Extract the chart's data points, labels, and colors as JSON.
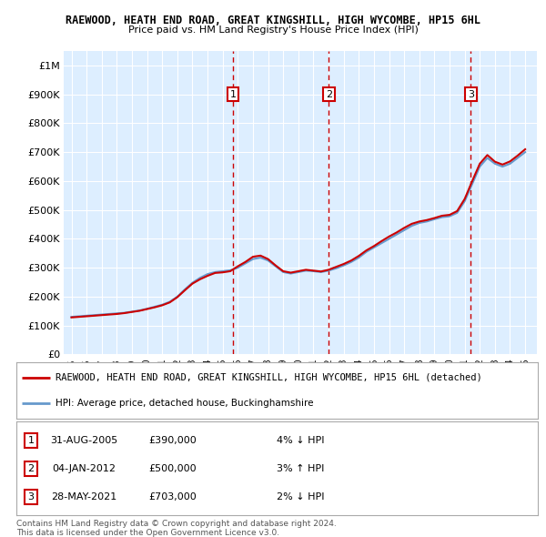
{
  "title1": "RAEWOOD, HEATH END ROAD, GREAT KINGSHILL, HIGH WYCOMBE, HP15 6HL",
  "title2": "Price paid vs. HM Land Registry's House Price Index (HPI)",
  "legend_label1": "RAEWOOD, HEATH END ROAD, GREAT KINGSHILL, HIGH WYCOMBE, HP15 6HL (detached)",
  "legend_label2": "HPI: Average price, detached house, Buckinghamshire",
  "footer1": "Contains HM Land Registry data © Crown copyright and database right 2024.",
  "footer2": "This data is licensed under the Open Government Licence v3.0.",
  "transactions": [
    {
      "num": 1,
      "date": "31-AUG-2005",
      "price": "£390,000",
      "hpi": "4% ↓ HPI",
      "year": 2005.67
    },
    {
      "num": 2,
      "date": "04-JAN-2012",
      "price": "£500,000",
      "hpi": "3% ↑ HPI",
      "year": 2012.01
    },
    {
      "num": 3,
      "date": "28-MAY-2021",
      "price": "£703,000",
      "hpi": "2% ↓ HPI",
      "year": 2021.41
    }
  ],
  "hpi_color": "#6699cc",
  "price_color": "#cc0000",
  "vline_color": "#cc0000",
  "bg_color": "#ddeeff",
  "ylim": [
    0,
    1050000
  ],
  "xlim_start": 1994.5,
  "xlim_end": 2025.8,
  "yticks": [
    0,
    100000,
    200000,
    300000,
    400000,
    500000,
    600000,
    700000,
    800000,
    900000,
    1000000
  ],
  "ytick_labels": [
    "£0",
    "£100K",
    "£200K",
    "£300K",
    "£400K",
    "£500K",
    "£600K",
    "£700K",
    "£800K",
    "£900K",
    "£1M"
  ],
  "hpi_years": [
    1995,
    1995.5,
    1996,
    1996.5,
    1997,
    1997.5,
    1998,
    1998.5,
    1999,
    1999.5,
    2000,
    2000.5,
    2001,
    2001.5,
    2002,
    2002.5,
    2003,
    2003.5,
    2004,
    2004.5,
    2005,
    2005.5,
    2006,
    2006.5,
    2007,
    2007.5,
    2008,
    2008.5,
    2009,
    2009.5,
    2010,
    2010.5,
    2011,
    2011.5,
    2012,
    2012.5,
    2013,
    2013.5,
    2014,
    2014.5,
    2015,
    2015.5,
    2016,
    2016.5,
    2017,
    2017.5,
    2018,
    2018.5,
    2019,
    2019.5,
    2020,
    2020.5,
    2021,
    2021.5,
    2022,
    2022.5,
    2023,
    2023.5,
    2024,
    2024.5,
    2025
  ],
  "hpi_values": [
    130000,
    132000,
    134000,
    136000,
    138000,
    140000,
    142000,
    144000,
    148000,
    152000,
    158000,
    165000,
    172000,
    182000,
    200000,
    225000,
    248000,
    265000,
    278000,
    285000,
    288000,
    291000,
    300000,
    315000,
    330000,
    335000,
    325000,
    305000,
    285000,
    280000,
    285000,
    290000,
    288000,
    285000,
    290000,
    298000,
    308000,
    320000,
    335000,
    355000,
    370000,
    385000,
    400000,
    415000,
    430000,
    445000,
    455000,
    460000,
    468000,
    475000,
    478000,
    490000,
    530000,
    590000,
    650000,
    680000,
    660000,
    650000,
    660000,
    680000,
    700000
  ],
  "price_years": [
    1995,
    1995.5,
    1996,
    1996.5,
    1997,
    1997.5,
    1998,
    1998.5,
    1999,
    1999.5,
    2000,
    2000.5,
    2001,
    2001.5,
    2002,
    2002.5,
    2003,
    2003.5,
    2004,
    2004.5,
    2005,
    2005.5,
    2006,
    2006.5,
    2007,
    2007.5,
    2008,
    2008.5,
    2009,
    2009.5,
    2010,
    2010.5,
    2011,
    2011.5,
    2012,
    2012.5,
    2013,
    2013.5,
    2014,
    2014.5,
    2015,
    2015.5,
    2016,
    2016.5,
    2017,
    2017.5,
    2018,
    2018.5,
    2019,
    2019.5,
    2020,
    2020.5,
    2021,
    2021.5,
    2022,
    2022.5,
    2023,
    2023.5,
    2024,
    2024.5,
    2025
  ],
  "price_values": [
    128000,
    130000,
    132000,
    134000,
    136000,
    138000,
    140000,
    143000,
    147000,
    151000,
    157000,
    163000,
    170000,
    180000,
    198000,
    222000,
    245000,
    260000,
    272000,
    282000,
    284000,
    288000,
    305000,
    320000,
    338000,
    342000,
    330000,
    308000,
    288000,
    283000,
    288000,
    293000,
    290000,
    287000,
    293000,
    303000,
    313000,
    325000,
    341000,
    360000,
    375000,
    392000,
    408000,
    422000,
    438000,
    452000,
    460000,
    465000,
    472000,
    480000,
    483000,
    496000,
    538000,
    600000,
    660000,
    690000,
    667000,
    657000,
    668000,
    688000,
    710000
  ]
}
